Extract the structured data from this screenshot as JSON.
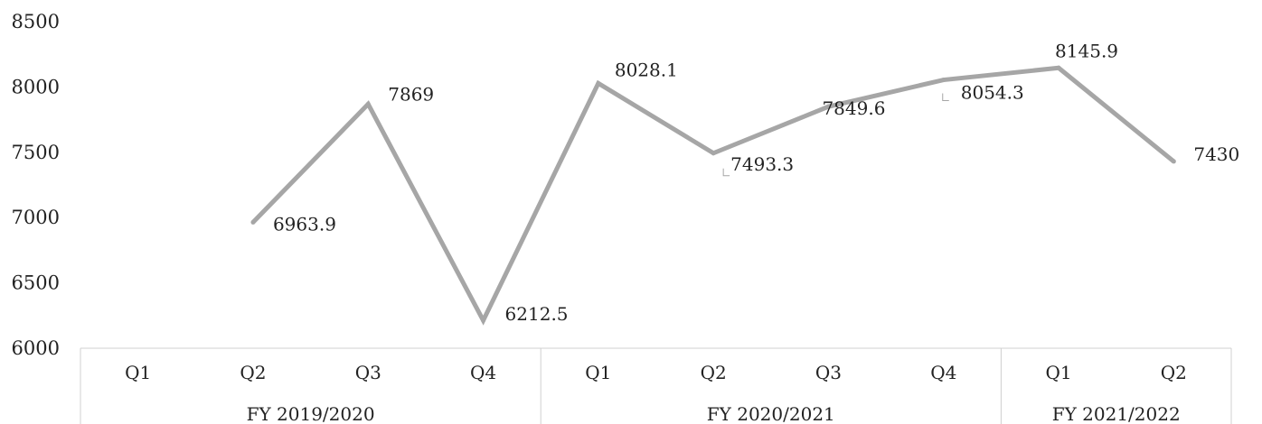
{
  "chart_data": {
    "type": "line",
    "title": "",
    "xlabel": "",
    "ylabel": "",
    "ylim": [
      6000,
      8500
    ],
    "yticks": [
      6000,
      6500,
      7000,
      7500,
      8000,
      8500
    ],
    "grid": false,
    "legend": "none",
    "line_color": "#a6a6a6",
    "groups": [
      {
        "label": "FY 2019/2020",
        "categories": [
          "Q1",
          "Q2",
          "Q3",
          "Q4"
        ]
      },
      {
        "label": "FY 2020/2021",
        "categories": [
          "Q1",
          "Q2",
          "Q3",
          "Q4"
        ]
      },
      {
        "label": "FY 2021/2022",
        "categories": [
          "Q1",
          "Q2"
        ]
      }
    ],
    "categories": [
      "Q1",
      "Q2",
      "Q3",
      "Q4",
      "Q1",
      "Q2",
      "Q3",
      "Q4",
      "Q1",
      "Q2"
    ],
    "values": [
      null,
      6963.9,
      7869,
      6212.5,
      8028.1,
      7493.3,
      7849.6,
      8054.3,
      8145.9,
      7430
    ],
    "data_labels": [
      "",
      "6963.9",
      "7869",
      "6212.5",
      "8028.1",
      "7493.3",
      "7849.6",
      "8054.3",
      "8145.9",
      "7430"
    ]
  }
}
